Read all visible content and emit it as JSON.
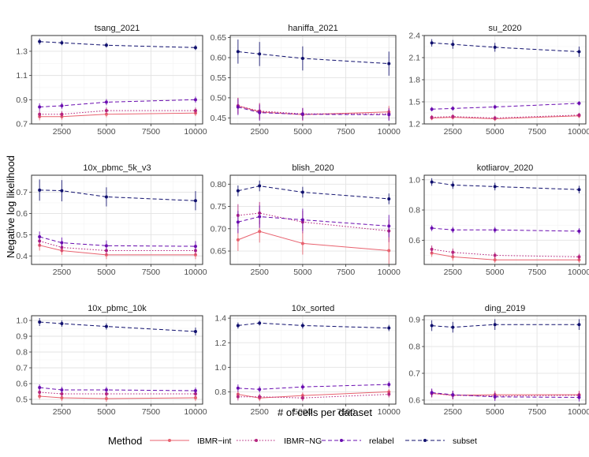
{
  "chart_data": {
    "type": "line",
    "xlabel": "# of cells per dataset",
    "ylabel": "Negative log likelihood",
    "x": [
      1250,
      2500,
      5000,
      10000
    ],
    "xlim": [
      800,
      10400
    ],
    "xticks": [
      2500,
      5000,
      7500,
      10000
    ],
    "legend": {
      "title": "Method",
      "position": "bottom",
      "entries": [
        {
          "name": "IBMR−int",
          "color": "#e8626f",
          "dash": "solid"
        },
        {
          "name": "IBMR−NG",
          "color": "#b5257e",
          "dash": "dotted"
        },
        {
          "name": "relabel",
          "color": "#6a0db0",
          "dash": "dashed"
        },
        {
          "name": "subset",
          "color": "#10106e",
          "dash": "dashed"
        }
      ]
    },
    "panels": [
      {
        "title": "tsang_2021",
        "ylim": [
          0.7,
          1.43
        ],
        "yticks": [
          0.7,
          0.9,
          1.1,
          1.3
        ],
        "ytick_labels": [
          "0.7",
          "0.9",
          "1.1",
          "1.3"
        ],
        "series": [
          {
            "name": "IBMR−int",
            "values": [
              0.76,
              0.76,
              0.78,
              0.79
            ],
            "err": [
              0.03,
              0.025,
              0.025,
              0.025
            ]
          },
          {
            "name": "IBMR−NG",
            "values": [
              0.78,
              0.78,
              0.81,
              0.81
            ],
            "err": [
              0.03,
              0.025,
              0.025,
              0.025
            ]
          },
          {
            "name": "relabel",
            "values": [
              0.84,
              0.85,
              0.88,
              0.9
            ],
            "err": [
              0.03,
              0.025,
              0.025,
              0.025
            ]
          },
          {
            "name": "subset",
            "values": [
              1.38,
              1.37,
              1.35,
              1.33
            ],
            "err": [
              0.025,
              0.02,
              0.02,
              0.02
            ]
          }
        ]
      },
      {
        "title": "haniffa_2021",
        "ylim": [
          0.435,
          0.655
        ],
        "yticks": [
          0.45,
          0.5,
          0.55,
          0.6,
          0.65
        ],
        "ytick_labels": [
          "0.45",
          "0.50",
          "0.55",
          "0.60",
          "0.65"
        ],
        "series": [
          {
            "name": "IBMR−int",
            "values": [
              0.48,
              0.465,
              0.458,
              0.465
            ],
            "err": [
              0.02,
              0.02,
              0.015,
              0.015
            ]
          },
          {
            "name": "IBMR−NG",
            "values": [
              0.48,
              0.467,
              0.46,
              0.46
            ],
            "err": [
              0.02,
              0.02,
              0.015,
              0.015
            ]
          },
          {
            "name": "relabel",
            "values": [
              0.477,
              0.463,
              0.459,
              0.458
            ],
            "err": [
              0.02,
              0.02,
              0.015,
              0.015
            ]
          },
          {
            "name": "subset",
            "values": [
              0.615,
              0.609,
              0.598,
              0.585
            ],
            "err": [
              0.03,
              0.03,
              0.03,
              0.03
            ]
          }
        ]
      },
      {
        "title": "su_2020",
        "ylim": [
          1.2,
          2.4
        ],
        "yticks": [
          1.2,
          1.5,
          1.8,
          2.1,
          2.4
        ],
        "ytick_labels": [
          "1.2",
          "1.5",
          "1.8",
          "2.1",
          "2.4"
        ],
        "series": [
          {
            "name": "IBMR−int",
            "values": [
              1.28,
              1.29,
              1.27,
              1.31
            ],
            "err": [
              0.03,
              0.03,
              0.03,
              0.03
            ]
          },
          {
            "name": "IBMR−NG",
            "values": [
              1.29,
              1.3,
              1.28,
              1.32
            ],
            "err": [
              0.03,
              0.03,
              0.03,
              0.03
            ]
          },
          {
            "name": "relabel",
            "values": [
              1.4,
              1.41,
              1.43,
              1.48
            ],
            "err": [
              0.03,
              0.03,
              0.03,
              0.03
            ]
          },
          {
            "name": "subset",
            "values": [
              2.3,
              2.28,
              2.24,
              2.18
            ],
            "err": [
              0.05,
              0.06,
              0.06,
              0.07
            ]
          }
        ]
      },
      {
        "title": "10x_pbmc_5k_v3",
        "ylim": [
          0.36,
          0.78
        ],
        "yticks": [
          0.4,
          0.5,
          0.6,
          0.7
        ],
        "ytick_labels": [
          "0.4",
          "0.5",
          "0.6",
          "0.7"
        ],
        "series": [
          {
            "name": "IBMR−int",
            "values": [
              0.45,
              0.425,
              0.405,
              0.405
            ],
            "err": [
              0.025,
              0.02,
              0.02,
              0.02
            ]
          },
          {
            "name": "IBMR−NG",
            "values": [
              0.47,
              0.44,
              0.425,
              0.425
            ],
            "err": [
              0.025,
              0.02,
              0.02,
              0.02
            ]
          },
          {
            "name": "relabel",
            "values": [
              0.49,
              0.462,
              0.448,
              0.445
            ],
            "err": [
              0.025,
              0.025,
              0.025,
              0.025
            ]
          },
          {
            "name": "subset",
            "values": [
              0.71,
              0.707,
              0.678,
              0.66
            ],
            "err": [
              0.05,
              0.05,
              0.045,
              0.045
            ]
          }
        ]
      },
      {
        "title": "blish_2020",
        "ylim": [
          0.62,
          0.82
        ],
        "yticks": [
          0.65,
          0.7,
          0.75,
          0.8
        ],
        "ytick_labels": [
          "0.65",
          "0.70",
          "0.75",
          "0.80"
        ],
        "series": [
          {
            "name": "IBMR−int",
            "values": [
              0.675,
              0.694,
              0.667,
              0.651
            ],
            "err": [
              0.025,
              0.025,
              0.025,
              0.03
            ]
          },
          {
            "name": "IBMR−NG",
            "values": [
              0.73,
              0.735,
              0.715,
              0.695
            ],
            "err": [
              0.025,
              0.025,
              0.025,
              0.025
            ]
          },
          {
            "name": "relabel",
            "values": [
              0.715,
              0.727,
              0.72,
              0.706
            ],
            "err": [
              0.025,
              0.025,
              0.025,
              0.025
            ]
          },
          {
            "name": "subset",
            "values": [
              0.785,
              0.796,
              0.782,
              0.767
            ],
            "err": [
              0.012,
              0.012,
              0.012,
              0.012
            ]
          }
        ]
      },
      {
        "title": "kotliarov_2020",
        "ylim": [
          0.44,
          1.03
        ],
        "yticks": [
          0.6,
          0.8,
          1.0
        ],
        "ytick_labels": [
          "0.6",
          "0.8",
          "1.0"
        ],
        "series": [
          {
            "name": "IBMR−int",
            "values": [
              0.515,
              0.49,
              0.47,
              0.47
            ],
            "err": [
              0.025,
              0.025,
              0.02,
              0.02
            ]
          },
          {
            "name": "IBMR−NG",
            "values": [
              0.54,
              0.52,
              0.5,
              0.49
            ],
            "err": [
              0.025,
              0.025,
              0.02,
              0.02
            ]
          },
          {
            "name": "relabel",
            "values": [
              0.68,
              0.668,
              0.668,
              0.66
            ],
            "err": [
              0.02,
              0.02,
              0.02,
              0.02
            ]
          },
          {
            "name": "subset",
            "values": [
              0.985,
              0.965,
              0.955,
              0.935
            ],
            "err": [
              0.025,
              0.025,
              0.025,
              0.025
            ]
          }
        ]
      },
      {
        "title": "10x_pbmc_10k",
        "ylim": [
          0.47,
          1.03
        ],
        "yticks": [
          0.5,
          0.6,
          0.7,
          0.8,
          0.9,
          1.0
        ],
        "ytick_labels": [
          "0.5",
          "0.6",
          "0.7",
          "0.8",
          "0.9",
          "1.0"
        ],
        "series": [
          {
            "name": "IBMR−int",
            "values": [
              0.52,
              0.51,
              0.505,
              0.51
            ],
            "err": [
              0.02,
              0.02,
              0.02,
              0.02
            ]
          },
          {
            "name": "IBMR−NG",
            "values": [
              0.545,
              0.535,
              0.535,
              0.535
            ],
            "err": [
              0.02,
              0.02,
              0.02,
              0.02
            ]
          },
          {
            "name": "relabel",
            "values": [
              0.575,
              0.56,
              0.56,
              0.555
            ],
            "err": [
              0.02,
              0.02,
              0.02,
              0.02
            ]
          },
          {
            "name": "subset",
            "values": [
              0.99,
              0.98,
              0.962,
              0.93
            ],
            "err": [
              0.025,
              0.02,
              0.02,
              0.025
            ]
          }
        ]
      },
      {
        "title": "10x_sorted",
        "ylim": [
          0.7,
          1.42
        ],
        "yticks": [
          0.8,
          1.0,
          1.2,
          1.4
        ],
        "ytick_labels": [
          "0.8",
          "1.0",
          "1.2",
          "1.4"
        ],
        "series": [
          {
            "name": "IBMR−int",
            "values": [
              0.78,
              0.75,
              0.77,
              0.8
            ],
            "err": [
              0.03,
              0.025,
              0.025,
              0.025
            ]
          },
          {
            "name": "IBMR−NG",
            "values": [
              0.76,
              0.76,
              0.75,
              0.78
            ],
            "err": [
              0.03,
              0.025,
              0.025,
              0.025
            ]
          },
          {
            "name": "relabel",
            "values": [
              0.83,
              0.82,
              0.84,
              0.86
            ],
            "err": [
              0.03,
              0.025,
              0.025,
              0.025
            ]
          },
          {
            "name": "subset",
            "values": [
              1.34,
              1.36,
              1.34,
              1.32
            ],
            "err": [
              0.025,
              0.02,
              0.025,
              0.025
            ]
          }
        ]
      },
      {
        "title": "ding_2019",
        "ylim": [
          0.585,
          0.915
        ],
        "yticks": [
          0.6,
          0.7,
          0.8,
          0.9
        ],
        "ytick_labels": [
          "0.6",
          "0.7",
          "0.8",
          "0.9"
        ],
        "series": [
          {
            "name": "IBMR−int",
            "values": [
              0.625,
              0.618,
              0.62,
              0.62
            ],
            "err": [
              0.015,
              0.015,
              0.015,
              0.015
            ]
          },
          {
            "name": "IBMR−NG",
            "values": [
              0.625,
              0.618,
              0.615,
              0.618
            ],
            "err": [
              0.015,
              0.015,
              0.015,
              0.015
            ]
          },
          {
            "name": "relabel",
            "values": [
              0.628,
              0.62,
              0.612,
              0.61
            ],
            "err": [
              0.015,
              0.015,
              0.015,
              0.015
            ]
          },
          {
            "name": "subset",
            "values": [
              0.878,
              0.872,
              0.882,
              0.882
            ],
            "err": [
              0.02,
              0.02,
              0.02,
              0.02
            ]
          }
        ]
      }
    ]
  }
}
